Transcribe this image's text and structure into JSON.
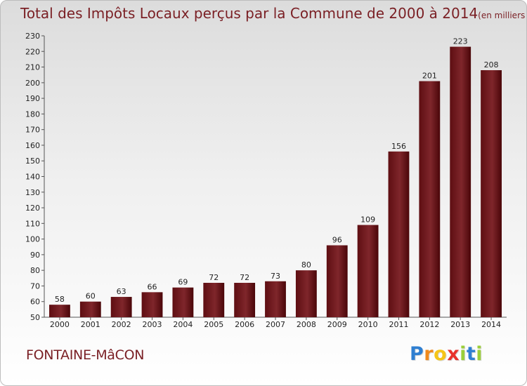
{
  "title": {
    "main": "Total des Impôts Locaux perçus par la Commune de 2000 à 2014",
    "unit": "(en milliers d'€)"
  },
  "commune_name": "FONTAINE-MâCON",
  "logo": {
    "letters": [
      "P",
      "r",
      "o",
      "x",
      "i",
      "t",
      "i"
    ],
    "colors": [
      "#2f7fd1",
      "#f08a1c",
      "#f5c518",
      "#e8322c",
      "#9bcf3a",
      "#2f7fd1",
      "#9bcf3a"
    ]
  },
  "chart_data": {
    "type": "bar",
    "categories": [
      "2000",
      "2001",
      "2002",
      "2003",
      "2004",
      "2005",
      "2006",
      "2007",
      "2008",
      "2009",
      "2010",
      "2011",
      "2012",
      "2013",
      "2014"
    ],
    "values": [
      58,
      60,
      63,
      66,
      69,
      72,
      72,
      73,
      80,
      96,
      109,
      156,
      201,
      223,
      208
    ],
    "ylim": [
      50,
      230
    ],
    "ytick_step": 10,
    "grid": false,
    "bar_color": "#7a1f24"
  }
}
